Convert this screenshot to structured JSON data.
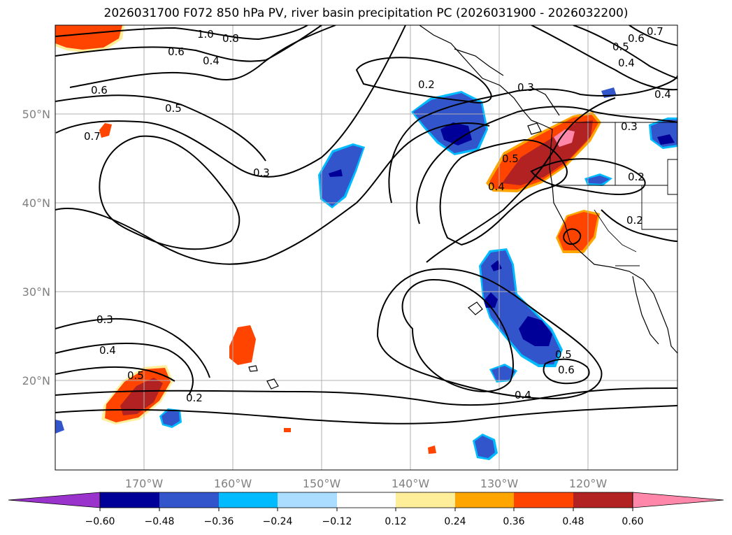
{
  "title": "2026031700 F072 850 hPa PV, river basin precipitation PC (2026031900 - 2026032200)",
  "map": {
    "lat_labels": [
      "50°N",
      "40°N",
      "30°N",
      "20°N"
    ],
    "lon_labels": [
      "170°W",
      "160°W",
      "150°W",
      "140°W",
      "130°W",
      "120°W"
    ],
    "contour_labels": [
      "1.0",
      "0.8",
      "0.6",
      "0.6",
      "0.5",
      "0.7",
      "0.2",
      "0.3",
      "0.3",
      "0.5",
      "0.4",
      "0.3",
      "0.2",
      "0.2",
      "0.3",
      "0.4",
      "0.5",
      "0.2",
      "0.4",
      "0.5",
      "0.6",
      "0.7",
      "0.6",
      "0.5",
      "0.4",
      "0.4",
      "0.4"
    ]
  },
  "colorbar": {
    "ticks": [
      "−0.60",
      "−0.48",
      "−0.36",
      "−0.24",
      "−0.12",
      "0.12",
      "0.24",
      "0.36",
      "0.48",
      "0.60"
    ],
    "colors": [
      "#9933cc",
      "#000099",
      "#3355cc",
      "#00bbff",
      "#aaddff",
      "#ffffff",
      "#ffee99",
      "#ffa500",
      "#ff4400",
      "#b22222",
      "#ff88aa"
    ]
  }
}
